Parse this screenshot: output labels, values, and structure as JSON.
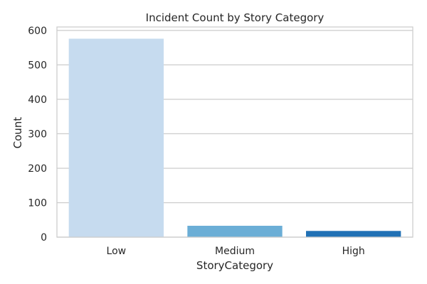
{
  "chart_data": {
    "type": "bar",
    "title": "Incident Count by Story Category",
    "xlabel": "StoryCategory",
    "ylabel": "Count",
    "categories": [
      "Low",
      "Medium",
      "High"
    ],
    "values": [
      576,
      33,
      18
    ],
    "colors": [
      "#c6dbef",
      "#6baed6",
      "#2171b5"
    ],
    "ylim": [
      0,
      610
    ],
    "yticks": [
      0,
      100,
      200,
      300,
      400,
      500,
      600
    ],
    "grid": true,
    "legend": "none"
  }
}
